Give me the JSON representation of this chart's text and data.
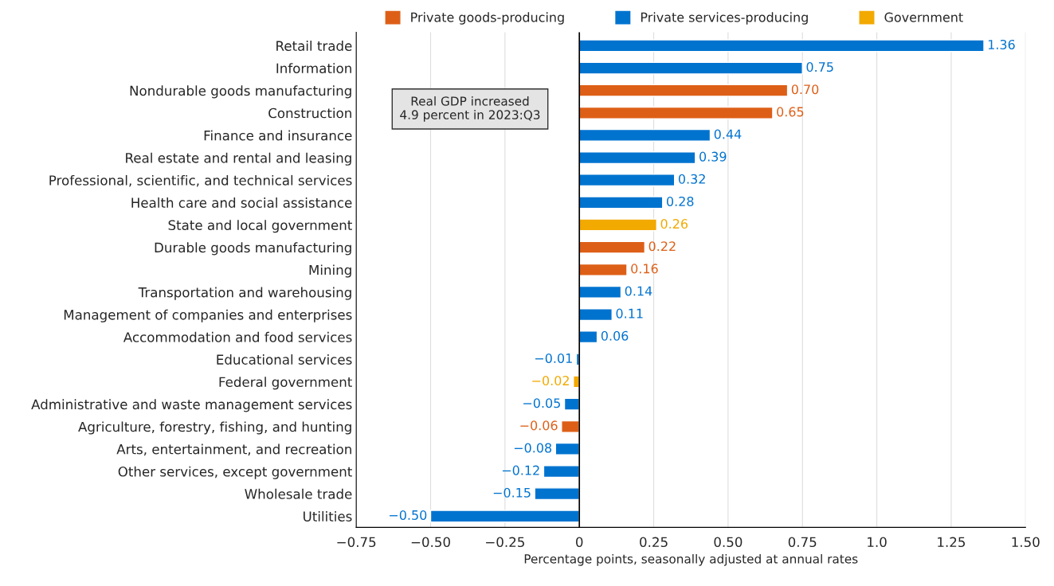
{
  "chart_data": {
    "type": "bar",
    "orientation": "horizontal",
    "categories": [
      "Retail trade",
      "Information",
      "Nondurable goods manufacturing",
      "Construction",
      "Finance and insurance",
      "Real estate and rental and leasing",
      "Professional, scientific, and technical services",
      "Health care and social assistance",
      "State and local government",
      "Durable goods manufacturing",
      "Mining",
      "Transportation and warehousing",
      "Management of companies and enterprises",
      "Accommodation and food services",
      "Educational services",
      "Federal government",
      "Administrative and waste management services",
      "Agriculture, forestry, fishing, and hunting",
      "Arts, entertainment, and recreation",
      "Other services, except government",
      "Wholesale trade",
      "Utilities"
    ],
    "series": [
      {
        "name": "Private goods-producing",
        "color": "#dd5f17",
        "values": [
          null,
          null,
          0.7,
          0.65,
          null,
          null,
          null,
          null,
          null,
          0.22,
          0.16,
          null,
          null,
          null,
          null,
          null,
          null,
          -0.06,
          null,
          null,
          null,
          null
        ],
        "value_labels": [
          null,
          null,
          "0.70",
          "0.65",
          null,
          null,
          null,
          null,
          null,
          "0.22",
          "0.16",
          null,
          null,
          null,
          null,
          null,
          null,
          "−0.06",
          null,
          null,
          null,
          null
        ]
      },
      {
        "name": "Private services-producing",
        "color": "#0073cf",
        "values": [
          1.36,
          0.75,
          null,
          null,
          0.44,
          0.39,
          0.32,
          0.28,
          null,
          null,
          null,
          0.14,
          0.11,
          0.06,
          -0.01,
          null,
          -0.05,
          null,
          -0.08,
          -0.12,
          -0.15,
          -0.5
        ],
        "value_labels": [
          "1.36",
          "0.75",
          null,
          null,
          "0.44",
          "0.39",
          "0.32",
          "0.28",
          null,
          null,
          null,
          "0.14",
          "0.11",
          "0.06",
          "−0.01",
          null,
          "−0.05",
          null,
          "−0.08",
          "−0.12",
          "−0.15",
          "−0.50"
        ]
      },
      {
        "name": "Government",
        "color": "#f2a900",
        "values": [
          null,
          null,
          null,
          null,
          null,
          null,
          null,
          null,
          0.26,
          null,
          null,
          null,
          null,
          null,
          null,
          -0.02,
          null,
          null,
          null,
          null,
          null,
          null
        ],
        "value_labels": [
          null,
          null,
          null,
          null,
          null,
          null,
          null,
          null,
          "0.26",
          null,
          null,
          null,
          null,
          null,
          null,
          "−0.02",
          null,
          null,
          null,
          null,
          null,
          null
        ]
      }
    ],
    "xlim": [
      -0.75,
      1.5
    ],
    "xticks": [
      {
        "value": -0.75,
        "label": "−0.75"
      },
      {
        "value": -0.5,
        "label": "−0.50"
      },
      {
        "value": -0.25,
        "label": "−0.25"
      },
      0,
      {
        "value": 0.25,
        "label": "0.25"
      },
      {
        "value": 0.5,
        "label": "0.50"
      },
      {
        "value": 0.75,
        "label": "0.75"
      },
      {
        "value": 1.0,
        "label": "1.0"
      },
      {
        "value": 1.25,
        "label": "1.25"
      },
      {
        "value": 1.5,
        "label": "1.50"
      }
    ],
    "xlabel": "Percentage points, seasonally adjusted at annual rates",
    "ref_lines": [
      {
        "axis": "x",
        "value": 0,
        "color": "#000000"
      }
    ],
    "annotations": [
      "Real GDP increased\n4.9 percent in 2023:Q3"
    ],
    "grid": "x",
    "legend": "top"
  }
}
